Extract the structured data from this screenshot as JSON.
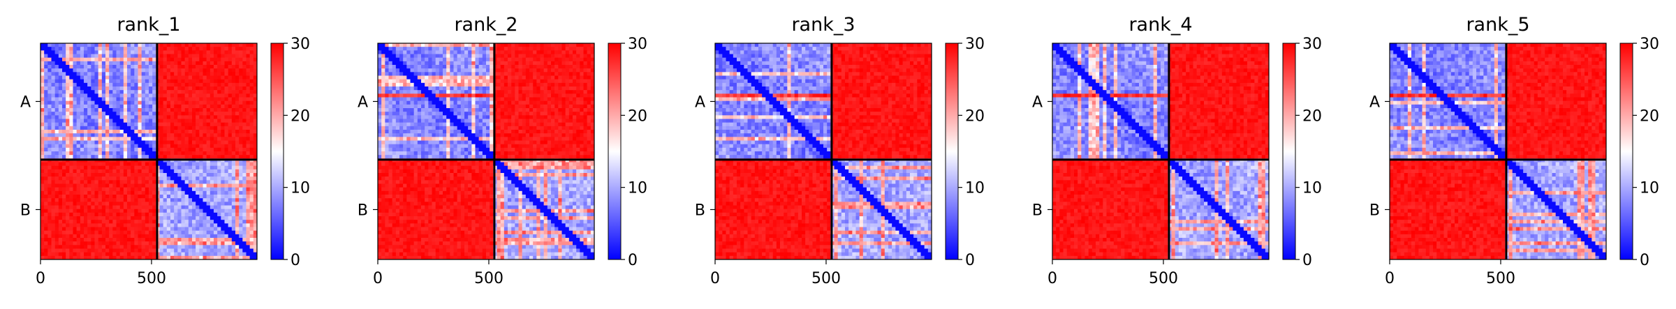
{
  "chart_data": [
    {
      "type": "heatmap",
      "title": "rank_1",
      "chains": [
        "A",
        "B"
      ],
      "chain_boundary": 525,
      "x_ticks": [
        "0",
        "500"
      ],
      "x_tick_values": [
        0,
        500
      ],
      "xlim": [
        0,
        975
      ],
      "colorbar": {
        "ticks": [
          "0",
          "10",
          "20",
          "30"
        ],
        "range": [
          0,
          30
        ],
        "colors": [
          "#0000ff",
          "#ffffff",
          "#ff0000"
        ]
      },
      "blocks": [
        {
          "rows": "A",
          "cols": "A",
          "typical_value": 8
        },
        {
          "rows": "A",
          "cols": "B",
          "typical_value": 30
        },
        {
          "rows": "B",
          "cols": "A",
          "typical_value": 30
        },
        {
          "rows": "B",
          "cols": "B",
          "typical_value": 10
        }
      ]
    },
    {
      "type": "heatmap",
      "title": "rank_2",
      "chains": [
        "A",
        "B"
      ],
      "chain_boundary": 525,
      "x_ticks": [
        "0",
        "500"
      ],
      "x_tick_values": [
        0,
        500
      ],
      "xlim": [
        0,
        975
      ],
      "colorbar": {
        "ticks": [
          "0",
          "10",
          "20",
          "30"
        ],
        "range": [
          0,
          30
        ],
        "colors": [
          "#0000ff",
          "#ffffff",
          "#ff0000"
        ]
      },
      "blocks": [
        {
          "rows": "A",
          "cols": "A",
          "typical_value": 8
        },
        {
          "rows": "A",
          "cols": "B",
          "typical_value": 30
        },
        {
          "rows": "B",
          "cols": "A",
          "typical_value": 30
        },
        {
          "rows": "B",
          "cols": "B",
          "typical_value": 10
        }
      ]
    },
    {
      "type": "heatmap",
      "title": "rank_3",
      "chains": [
        "A",
        "B"
      ],
      "chain_boundary": 525,
      "x_ticks": [
        "0",
        "500"
      ],
      "x_tick_values": [
        0,
        500
      ],
      "xlim": [
        0,
        975
      ],
      "colorbar": {
        "ticks": [
          "0",
          "10",
          "20",
          "30"
        ],
        "range": [
          0,
          30
        ],
        "colors": [
          "#0000ff",
          "#ffffff",
          "#ff0000"
        ]
      },
      "blocks": [
        {
          "rows": "A",
          "cols": "A",
          "typical_value": 8
        },
        {
          "rows": "A",
          "cols": "B",
          "typical_value": 30
        },
        {
          "rows": "B",
          "cols": "A",
          "typical_value": 30
        },
        {
          "rows": "B",
          "cols": "B",
          "typical_value": 10
        }
      ]
    },
    {
      "type": "heatmap",
      "title": "rank_4",
      "chains": [
        "A",
        "B"
      ],
      "chain_boundary": 525,
      "x_ticks": [
        "0",
        "500"
      ],
      "x_tick_values": [
        0,
        500
      ],
      "xlim": [
        0,
        975
      ],
      "colorbar": {
        "ticks": [
          "0",
          "10",
          "20",
          "30"
        ],
        "range": [
          0,
          30
        ],
        "colors": [
          "#0000ff",
          "#ffffff",
          "#ff0000"
        ]
      },
      "blocks": [
        {
          "rows": "A",
          "cols": "A",
          "typical_value": 8
        },
        {
          "rows": "A",
          "cols": "B",
          "typical_value": 30
        },
        {
          "rows": "B",
          "cols": "A",
          "typical_value": 30
        },
        {
          "rows": "B",
          "cols": "B",
          "typical_value": 10
        }
      ]
    },
    {
      "type": "heatmap",
      "title": "rank_5",
      "chains": [
        "A",
        "B"
      ],
      "chain_boundary": 525,
      "x_ticks": [
        "0",
        "500"
      ],
      "x_tick_values": [
        0,
        500
      ],
      "xlim": [
        0,
        975
      ],
      "colorbar": {
        "ticks": [
          "0",
          "10",
          "20",
          "30"
        ],
        "range": [
          0,
          30
        ],
        "colors": [
          "#0000ff",
          "#ffffff",
          "#ff0000"
        ]
      },
      "blocks": [
        {
          "rows": "A",
          "cols": "A",
          "typical_value": 8
        },
        {
          "rows": "A",
          "cols": "B",
          "typical_value": 30
        },
        {
          "rows": "B",
          "cols": "A",
          "typical_value": 30
        },
        {
          "rows": "B",
          "cols": "B",
          "typical_value": 10
        }
      ]
    }
  ]
}
